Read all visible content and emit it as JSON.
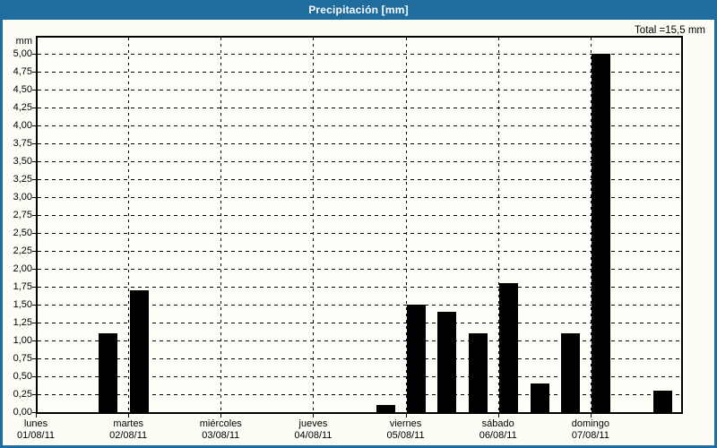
{
  "window": {
    "title": "Precipitación [mm]"
  },
  "summary": {
    "total_label": "Total =15,5 mm",
    "total_value_mm": 15.5
  },
  "chart_data": {
    "type": "bar",
    "title": "Precipitación [mm]",
    "ylabel_unit": "mm",
    "ylim": [
      0,
      5
    ],
    "y_tick_step": 0.25,
    "y_tick_labels": [
      "5,00",
      "4,75",
      "4,50",
      "4,25",
      "4,00",
      "3,75",
      "3,50",
      "3,25",
      "3,00",
      "2,75",
      "2,50",
      "2,25",
      "2,00",
      "1,75",
      "1,50",
      "1,25",
      "1,00",
      "0,75",
      "0,50",
      "0,25",
      "0,00"
    ],
    "grid": "dashed",
    "legend": "none",
    "slots_per_day": 3,
    "days": [
      {
        "name": "lunes",
        "date": "01/08/11"
      },
      {
        "name": "martes",
        "date": "02/08/11"
      },
      {
        "name": "miércoles",
        "date": "03/08/11"
      },
      {
        "name": "jueves",
        "date": "04/08/11"
      },
      {
        "name": "viernes",
        "date": "05/08/11"
      },
      {
        "name": "sábado",
        "date": "06/08/11"
      },
      {
        "name": "domingo",
        "date": "07/08/11"
      }
    ],
    "bars": [
      {
        "day": 0,
        "slot": 2,
        "value_mm": 1.1
      },
      {
        "day": 1,
        "slot": 0,
        "value_mm": 1.7
      },
      {
        "day": 3,
        "slot": 2,
        "value_mm": 0.1
      },
      {
        "day": 4,
        "slot": 0,
        "value_mm": 1.5
      },
      {
        "day": 4,
        "slot": 1,
        "value_mm": 1.4
      },
      {
        "day": 4,
        "slot": 2,
        "value_mm": 1.1
      },
      {
        "day": 5,
        "slot": 0,
        "value_mm": 1.8
      },
      {
        "day": 5,
        "slot": 1,
        "value_mm": 0.4
      },
      {
        "day": 5,
        "slot": 2,
        "value_mm": 1.1
      },
      {
        "day": 6,
        "slot": 0,
        "value_mm": 5.0
      },
      {
        "day": 6,
        "slot": 2,
        "value_mm": 0.3
      }
    ]
  },
  "colors": {
    "titlebar_bg": "#1e6d9e",
    "titlebar_text": "#ffffff",
    "panel_bg": "#fdfdf6",
    "plot_bg": "#fdfef8",
    "window_border": "#1e6d9e",
    "bar": "#000000",
    "grid": "#000000",
    "text": "#000000"
  }
}
